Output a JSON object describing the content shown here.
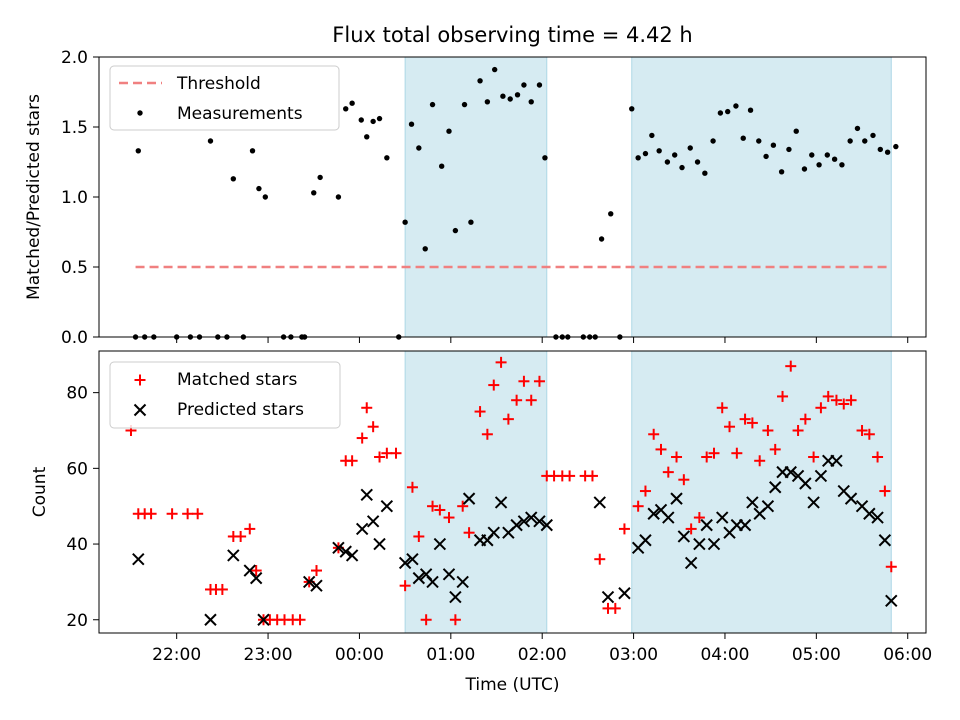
{
  "chart_data": [
    {
      "type": "scatter",
      "title": "Flux total observing time = 4.42 h",
      "xlabel": "",
      "ylabel": "Matched/Predicted stars",
      "x_unit": "hours since 00:00 UTC",
      "xlim": [
        -2.85,
        6.2
      ],
      "ylim": [
        0,
        2.0
      ],
      "yticks": [
        0.0,
        0.5,
        1.0,
        1.5,
        2.0
      ],
      "ytick_labels": [
        "0.0",
        "0.5",
        "1.0",
        "1.5",
        "2.0"
      ],
      "xticks": [
        -2,
        -1,
        0,
        1,
        2,
        3,
        4,
        5,
        6
      ],
      "shaded_intervals": [
        [
          0.5,
          2.05
        ],
        [
          2.98,
          5.82
        ]
      ],
      "legend": [
        {
          "name": "Threshold",
          "style": "dashed-line",
          "color": "#f08080"
        },
        {
          "name": "Measurements",
          "style": "dot",
          "color": "#000000"
        }
      ],
      "threshold": {
        "y": 0.5,
        "x_range": [
          -2.45,
          5.82
        ]
      },
      "series": [
        {
          "name": "Measurements",
          "points": [
            [
              -2.45,
              0
            ],
            [
              -2.42,
              1.33
            ],
            [
              -2.35,
              0
            ],
            [
              -2.25,
              0
            ],
            [
              -2.0,
              0
            ],
            [
              -1.85,
              0
            ],
            [
              -1.75,
              0
            ],
            [
              -1.63,
              1.4
            ],
            [
              -1.55,
              0
            ],
            [
              -1.45,
              0
            ],
            [
              -1.38,
              1.13
            ],
            [
              -1.27,
              0
            ],
            [
              -1.17,
              1.33
            ],
            [
              -1.1,
              1.06
            ],
            [
              -1.03,
              1.0
            ],
            [
              -0.83,
              0
            ],
            [
              -0.75,
              0
            ],
            [
              -0.63,
              0
            ],
            [
              -0.6,
              0
            ],
            [
              -0.5,
              1.03
            ],
            [
              -0.43,
              1.14
            ],
            [
              -0.23,
              1.0
            ],
            [
              -0.15,
              1.63
            ],
            [
              -0.08,
              1.67
            ],
            [
              0.02,
              1.55
            ],
            [
              0.08,
              1.43
            ],
            [
              0.15,
              1.54
            ],
            [
              0.22,
              1.56
            ],
            [
              0.3,
              1.28
            ],
            [
              0.43,
              0
            ],
            [
              0.5,
              0.82
            ],
            [
              0.57,
              1.52
            ],
            [
              0.65,
              1.35
            ],
            [
              0.72,
              0.63
            ],
            [
              0.8,
              1.66
            ],
            [
              0.9,
              1.22
            ],
            [
              0.98,
              1.47
            ],
            [
              1.05,
              0.76
            ],
            [
              1.15,
              1.66
            ],
            [
              1.22,
              0.82
            ],
            [
              1.32,
              1.83
            ],
            [
              1.4,
              1.68
            ],
            [
              1.48,
              1.91
            ],
            [
              1.57,
              1.72
            ],
            [
              1.65,
              1.7
            ],
            [
              1.73,
              1.73
            ],
            [
              1.8,
              1.8
            ],
            [
              1.88,
              1.68
            ],
            [
              1.97,
              1.8
            ],
            [
              2.03,
              1.28
            ],
            [
              2.15,
              0
            ],
            [
              2.22,
              0
            ],
            [
              2.28,
              0
            ],
            [
              2.45,
              0
            ],
            [
              2.52,
              0
            ],
            [
              2.58,
              0
            ],
            [
              2.65,
              0.7
            ],
            [
              2.75,
              0.88
            ],
            [
              2.85,
              0
            ],
            [
              2.98,
              1.63
            ],
            [
              3.05,
              1.28
            ],
            [
              3.13,
              1.31
            ],
            [
              3.2,
              1.44
            ],
            [
              3.28,
              1.33
            ],
            [
              3.37,
              1.25
            ],
            [
              3.45,
              1.3
            ],
            [
              3.53,
              1.21
            ],
            [
              3.62,
              1.35
            ],
            [
              3.7,
              1.25
            ],
            [
              3.78,
              1.17
            ],
            [
              3.87,
              1.4
            ],
            [
              3.95,
              1.6
            ],
            [
              4.03,
              1.61
            ],
            [
              4.12,
              1.65
            ],
            [
              4.2,
              1.42
            ],
            [
              4.28,
              1.62
            ],
            [
              4.37,
              1.4
            ],
            [
              4.45,
              1.29
            ],
            [
              4.53,
              1.37
            ],
            [
              4.62,
              1.18
            ],
            [
              4.7,
              1.34
            ],
            [
              4.78,
              1.47
            ],
            [
              4.87,
              1.2
            ],
            [
              4.95,
              1.3
            ],
            [
              5.03,
              1.23
            ],
            [
              5.12,
              1.3
            ],
            [
              5.2,
              1.27
            ],
            [
              5.28,
              1.23
            ],
            [
              5.37,
              1.4
            ],
            [
              5.45,
              1.49
            ],
            [
              5.53,
              1.4
            ],
            [
              5.62,
              1.44
            ],
            [
              5.7,
              1.34
            ],
            [
              5.78,
              1.32
            ],
            [
              5.87,
              1.36
            ]
          ]
        }
      ]
    },
    {
      "type": "scatter",
      "title": "",
      "xlabel": "Time (UTC)",
      "ylabel": "Count",
      "x_unit": "hours since 00:00 UTC",
      "xlim": [
        -2.85,
        6.2
      ],
      "ylim": [
        16.5,
        91
      ],
      "yticks": [
        20,
        40,
        60,
        80
      ],
      "ytick_labels": [
        "20",
        "40",
        "60",
        "80"
      ],
      "xticks": [
        -2,
        -1,
        0,
        1,
        2,
        3,
        4,
        5,
        6
      ],
      "xtick_labels": [
        "22:00",
        "23:00",
        "00:00",
        "01:00",
        "02:00",
        "03:00",
        "04:00",
        "05:00",
        "06:00"
      ],
      "shaded_intervals": [
        [
          0.5,
          2.05
        ],
        [
          2.98,
          5.82
        ]
      ],
      "legend": [
        {
          "name": "Matched stars",
          "style": "plus",
          "color": "#ff0000"
        },
        {
          "name": "Predicted stars",
          "style": "cross",
          "color": "#000000"
        }
      ],
      "series": [
        {
          "name": "Matched stars",
          "points": [
            [
              -2.5,
              70
            ],
            [
              -2.42,
              48
            ],
            [
              -2.35,
              48
            ],
            [
              -2.28,
              48
            ],
            [
              -2.05,
              48
            ],
            [
              -1.88,
              48
            ],
            [
              -1.77,
              48
            ],
            [
              -1.63,
              28
            ],
            [
              -1.57,
              28
            ],
            [
              -1.5,
              28
            ],
            [
              -1.38,
              42
            ],
            [
              -1.3,
              42
            ],
            [
              -1.2,
              44
            ],
            [
              -1.13,
              33
            ],
            [
              -1.05,
              20
            ],
            [
              -0.98,
              20
            ],
            [
              -0.9,
              20
            ],
            [
              -0.82,
              20
            ],
            [
              -0.73,
              20
            ],
            [
              -0.65,
              20
            ],
            [
              -0.55,
              30
            ],
            [
              -0.47,
              33
            ],
            [
              -0.23,
              39
            ],
            [
              -0.15,
              62
            ],
            [
              -0.08,
              62
            ],
            [
              0.03,
              68
            ],
            [
              0.08,
              76
            ],
            [
              0.15,
              71
            ],
            [
              0.22,
              63
            ],
            [
              0.3,
              64
            ],
            [
              0.4,
              64
            ],
            [
              0.5,
              29
            ],
            [
              0.58,
              55
            ],
            [
              0.65,
              42
            ],
            [
              0.73,
              20
            ],
            [
              0.8,
              50
            ],
            [
              0.88,
              49
            ],
            [
              0.98,
              47
            ],
            [
              1.05,
              20
            ],
            [
              1.13,
              50
            ],
            [
              1.2,
              43
            ],
            [
              1.32,
              75
            ],
            [
              1.4,
              69
            ],
            [
              1.47,
              82
            ],
            [
              1.55,
              88
            ],
            [
              1.63,
              73
            ],
            [
              1.72,
              78
            ],
            [
              1.8,
              83
            ],
            [
              1.88,
              78
            ],
            [
              1.97,
              83
            ],
            [
              2.05,
              58
            ],
            [
              2.13,
              58
            ],
            [
              2.22,
              58
            ],
            [
              2.3,
              58
            ],
            [
              2.47,
              58
            ],
            [
              2.55,
              58
            ],
            [
              2.63,
              36
            ],
            [
              2.72,
              23
            ],
            [
              2.8,
              23
            ],
            [
              2.9,
              44
            ],
            [
              3.05,
              50
            ],
            [
              3.13,
              54
            ],
            [
              3.22,
              69
            ],
            [
              3.3,
              65
            ],
            [
              3.38,
              59
            ],
            [
              3.47,
              63
            ],
            [
              3.55,
              57
            ],
            [
              3.63,
              44
            ],
            [
              3.72,
              47
            ],
            [
              3.8,
              63
            ],
            [
              3.88,
              64
            ],
            [
              3.97,
              76
            ],
            [
              4.05,
              71
            ],
            [
              4.13,
              64
            ],
            [
              4.22,
              73
            ],
            [
              4.3,
              72
            ],
            [
              4.38,
              62
            ],
            [
              4.47,
              70
            ],
            [
              4.55,
              65
            ],
            [
              4.63,
              79
            ],
            [
              4.72,
              87
            ],
            [
              4.8,
              70
            ],
            [
              4.88,
              73
            ],
            [
              4.97,
              63
            ],
            [
              5.05,
              76
            ],
            [
              5.13,
              79
            ],
            [
              5.22,
              78
            ],
            [
              5.3,
              77
            ],
            [
              5.38,
              78
            ],
            [
              5.5,
              70
            ],
            [
              5.58,
              69
            ],
            [
              5.67,
              63
            ],
            [
              5.75,
              54
            ],
            [
              5.82,
              34
            ]
          ]
        },
        {
          "name": "Predicted stars",
          "points": [
            [
              -2.42,
              36
            ],
            [
              -1.63,
              20
            ],
            [
              -1.38,
              37
            ],
            [
              -1.2,
              33
            ],
            [
              -1.13,
              31
            ],
            [
              -1.05,
              20
            ],
            [
              -0.55,
              30
            ],
            [
              -0.47,
              29
            ],
            [
              -0.23,
              39
            ],
            [
              -0.15,
              38
            ],
            [
              -0.08,
              37
            ],
            [
              0.03,
              44
            ],
            [
              0.08,
              53
            ],
            [
              0.15,
              46
            ],
            [
              0.22,
              40
            ],
            [
              0.3,
              50
            ],
            [
              0.5,
              35
            ],
            [
              0.58,
              36
            ],
            [
              0.65,
              31
            ],
            [
              0.73,
              32
            ],
            [
              0.8,
              30
            ],
            [
              0.88,
              40
            ],
            [
              0.98,
              32
            ],
            [
              1.05,
              26
            ],
            [
              1.13,
              30
            ],
            [
              1.2,
              52
            ],
            [
              1.32,
              41
            ],
            [
              1.4,
              41
            ],
            [
              1.47,
              43
            ],
            [
              1.55,
              51
            ],
            [
              1.63,
              43
            ],
            [
              1.72,
              45
            ],
            [
              1.8,
              46
            ],
            [
              1.88,
              47
            ],
            [
              1.97,
              46
            ],
            [
              2.05,
              45
            ],
            [
              2.63,
              51
            ],
            [
              2.72,
              26
            ],
            [
              2.9,
              27
            ],
            [
              3.05,
              39
            ],
            [
              3.13,
              41
            ],
            [
              3.22,
              48
            ],
            [
              3.3,
              49
            ],
            [
              3.38,
              47
            ],
            [
              3.47,
              52
            ],
            [
              3.55,
              42
            ],
            [
              3.63,
              35
            ],
            [
              3.72,
              40
            ],
            [
              3.8,
              45
            ],
            [
              3.88,
              40
            ],
            [
              3.97,
              47
            ],
            [
              4.05,
              43
            ],
            [
              4.13,
              45
            ],
            [
              4.22,
              45
            ],
            [
              4.3,
              51
            ],
            [
              4.38,
              48
            ],
            [
              4.47,
              50
            ],
            [
              4.55,
              55
            ],
            [
              4.63,
              59
            ],
            [
              4.72,
              59
            ],
            [
              4.8,
              58
            ],
            [
              4.88,
              56
            ],
            [
              4.97,
              51
            ],
            [
              5.05,
              58
            ],
            [
              5.13,
              62
            ],
            [
              5.22,
              62
            ],
            [
              5.3,
              54
            ],
            [
              5.38,
              52
            ],
            [
              5.5,
              50
            ],
            [
              5.58,
              48
            ],
            [
              5.67,
              47
            ],
            [
              5.75,
              41
            ],
            [
              5.82,
              25
            ]
          ]
        }
      ]
    }
  ]
}
